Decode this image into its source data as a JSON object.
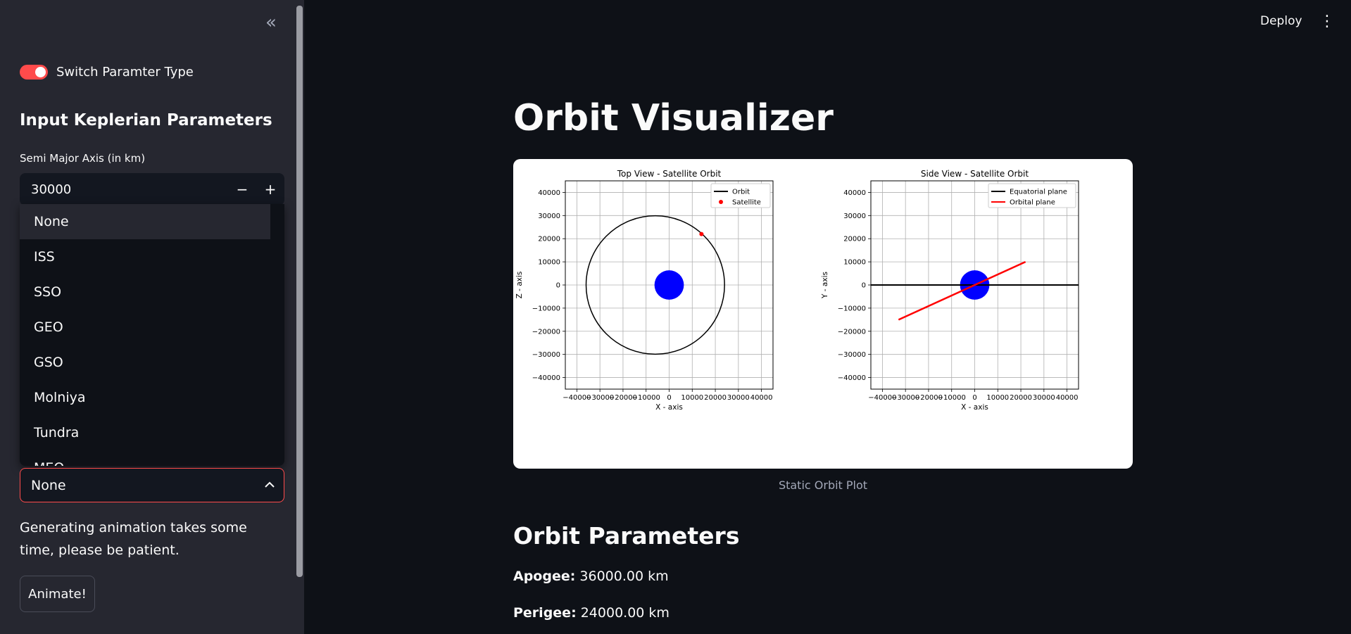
{
  "sidebar": {
    "collapse_glyph": "«",
    "toggle_label": "Switch Paramter Type",
    "section_title": "Input Keplerian Parameters",
    "semi_major_label": "Semi Major Axis (in km)",
    "semi_major_value": "30000",
    "minus": "−",
    "plus": "+",
    "preset_options": [
      "None",
      "ISS",
      "SSO",
      "GEO",
      "GSO",
      "Molniya",
      "Tundra",
      "MEO"
    ],
    "preset_selected": "None",
    "note": "Generating animation takes some time, please be patient.",
    "animate_label": "Animate!"
  },
  "header": {
    "deploy_label": "Deploy",
    "menu_glyph": "⋮"
  },
  "main": {
    "title": "Orbit Visualizer",
    "caption": "Static Orbit Plot",
    "params_title": "Orbit Parameters",
    "apogee_label": "Apogee:",
    "apogee_value": "36000.00 km",
    "perigee_label": "Perigee:",
    "perigee_value": "24000.00 km"
  },
  "colors": {
    "accent": "#ff4b4b",
    "earth": "#0000ff",
    "orbital_plane": "#ff0000"
  },
  "chart_data": [
    {
      "type": "line",
      "title": "Top View - Satellite Orbit",
      "xlabel": "X - axis",
      "ylabel": "Z - axis",
      "xlim": [
        -45000,
        45000
      ],
      "ylim": [
        -45000,
        45000
      ],
      "xticks": [
        "−40000",
        "−30000",
        "−20000",
        "−10000",
        "0",
        "10000",
        "20000",
        "30000",
        "40000"
      ],
      "yticks": [
        "−40000",
        "−30000",
        "−20000",
        "−10000",
        "0",
        "10000",
        "20000",
        "30000",
        "40000"
      ],
      "grid": true,
      "legend_position": "top-right",
      "series": [
        {
          "name": "Orbit",
          "center": [
            -6000,
            0
          ],
          "radius": 30000,
          "color": "#000000"
        },
        {
          "name": "Satellite",
          "point": [
            14000,
            22000
          ],
          "color": "#ff0000"
        }
      ],
      "earth": {
        "center": [
          0,
          0
        ],
        "radius": 6371
      }
    },
    {
      "type": "line",
      "title": "Side View - Satellite Orbit",
      "xlabel": "X - axis",
      "ylabel": "Y - axis",
      "xlim": [
        -45000,
        45000
      ],
      "ylim": [
        -45000,
        45000
      ],
      "xticks": [
        "−40000",
        "−30000",
        "−20000",
        "−10000",
        "0",
        "10000",
        "20000",
        "30000",
        "40000"
      ],
      "yticks": [
        "−40000",
        "−30000",
        "−20000",
        "−10000",
        "0",
        "10000",
        "20000",
        "30000",
        "40000"
      ],
      "grid": true,
      "legend_position": "top-right",
      "series": [
        {
          "name": "Equatorial plane",
          "x": [
            -45000,
            45000
          ],
          "y": [
            0,
            0
          ],
          "color": "#000000"
        },
        {
          "name": "Orbital plane",
          "x": [
            -33000,
            22000
          ],
          "y": [
            -15000,
            10000
          ],
          "color": "#ff0000"
        }
      ],
      "earth": {
        "center": [
          0,
          0
        ],
        "radius": 6371
      }
    }
  ]
}
